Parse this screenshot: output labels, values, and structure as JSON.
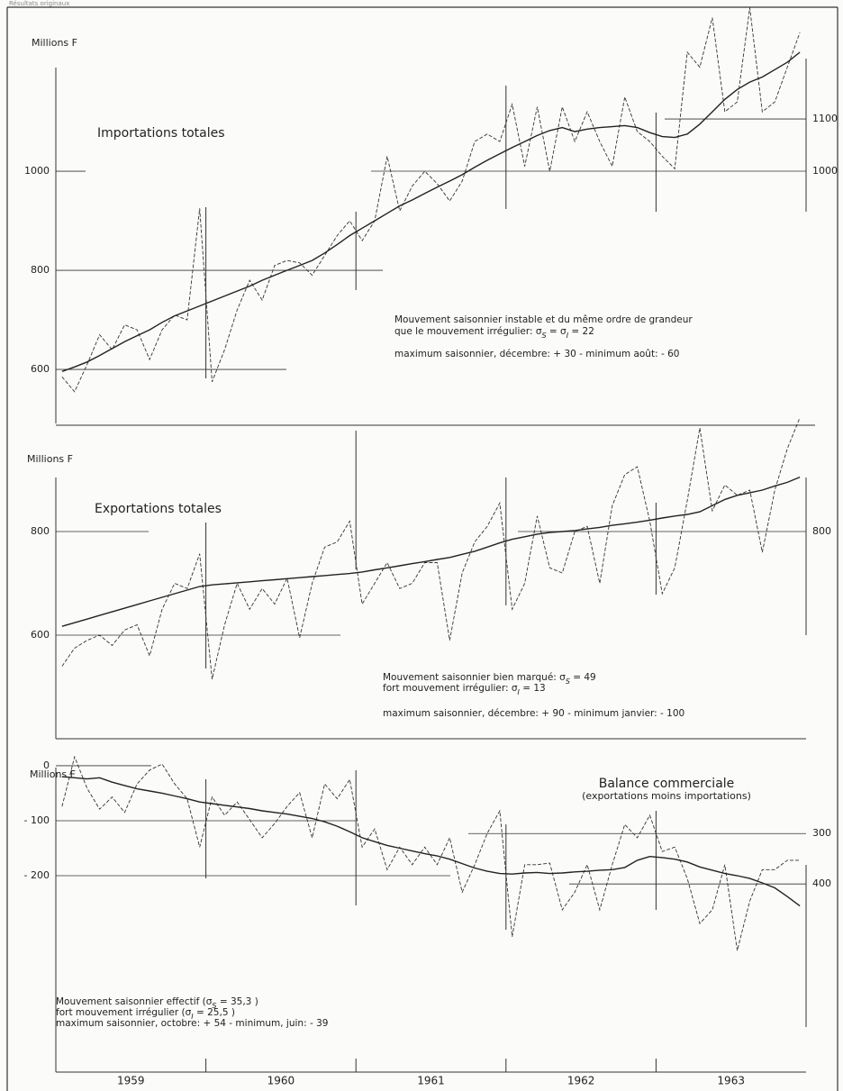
{
  "header": "Résultats originaux",
  "x_axis": {
    "years": [
      1959,
      1960,
      1961,
      1962,
      1963
    ]
  },
  "chart_data": [
    {
      "type": "line",
      "title": "Importations totales",
      "y_label": "Millions F",
      "notes": [
        "Mouvement saisonnier instable et du même ordre de grandeur",
        [
          "que le mouvement irrégulier: σ",
          "S",
          " = σ",
          "I",
          " = 22"
        ],
        "maximum saisonnier, décembre: + 30  -  minimum août:  - 60"
      ],
      "ylim": [
        491,
        1331
      ],
      "yticks": [
        600,
        800,
        1000
      ],
      "y2lim": [
        517,
        1314
      ],
      "y2ticks": [
        1000,
        1100
      ],
      "series": [
        {
          "style": "dashed",
          "color": "#333333",
          "values": [
            585,
            555,
            610,
            670,
            640,
            690,
            680,
            620,
            680,
            710,
            700,
            925,
            575,
            640,
            720,
            780,
            740,
            810,
            820,
            815,
            790,
            830,
            870,
            900,
            860,
            900,
            1030,
            920,
            970,
            1000,
            975,
            940,
            980,
            1060,
            1075,
            1060,
            1135,
            1010,
            1130,
            1000,
            1130,
            1060,
            1120,
            1060,
            1010,
            1150,
            1080,
            1060,
            1030,
            1005,
            1240,
            1210,
            1310,
            1120,
            1140,
            1330,
            1120,
            1140,
            1210,
            1280
          ]
        },
        {
          "style": "solid",
          "color": "#222222",
          "values": [
            596,
            605,
            615,
            628,
            642,
            656,
            668,
            680,
            695,
            708,
            718,
            728,
            738,
            748,
            758,
            768,
            780,
            790,
            800,
            810,
            820,
            835,
            852,
            870,
            885,
            900,
            915,
            930,
            942,
            955,
            968,
            980,
            993,
            1008,
            1022,
            1035,
            1048,
            1060,
            1072,
            1082,
            1088,
            1080,
            1085,
            1088,
            1090,
            1092,
            1088,
            1078,
            1070,
            1068,
            1075,
            1095,
            1120,
            1145,
            1165,
            1180,
            1190,
            1205,
            1220,
            1240
          ]
        }
      ]
    },
    {
      "type": "line",
      "title": "Exportations totales",
      "y_label": "Millions F",
      "notes": [
        [
          "Mouvement saisonnier bien marqué: σ",
          "S",
          "  =  49"
        ],
        [
          "fort mouvement irrégulier: σ",
          "I",
          " =  13"
        ],
        "maximum saisonnier, décembre: + 90  -  minimum janvier:  - 100"
      ],
      "ylim": [
        400,
        1020
      ],
      "yticks": [
        600,
        800
      ],
      "y2lim": [
        400,
        1020
      ],
      "y2ticks": [
        800
      ],
      "series": [
        {
          "style": "dashed",
          "color": "#333333",
          "values": [
            540,
            575,
            590,
            600,
            580,
            610,
            620,
            560,
            650,
            700,
            690,
            757,
            515,
            620,
            700,
            650,
            690,
            660,
            710,
            595,
            700,
            770,
            780,
            820,
            660,
            700,
            740,
            690,
            700,
            740,
            740,
            590,
            720,
            780,
            810,
            855,
            650,
            700,
            830,
            730,
            720,
            800,
            810,
            700,
            850,
            910,
            925,
            820,
            680,
            730,
            860,
            1000,
            840,
            890,
            870,
            880,
            760,
            880,
            960,
            1020
          ]
        },
        {
          "style": "solid",
          "color": "#222222",
          "values": [
            617,
            624,
            631,
            638,
            645,
            652,
            659,
            666,
            673,
            680,
            687,
            694,
            697,
            699,
            701,
            703,
            705,
            707,
            709,
            711,
            713,
            715,
            717,
            719,
            722,
            726,
            730,
            734,
            738,
            742,
            746,
            750,
            756,
            762,
            770,
            778,
            785,
            790,
            795,
            798,
            800,
            802,
            805,
            808,
            812,
            815,
            818,
            822,
            826,
            830,
            833,
            838,
            850,
            862,
            870,
            875,
            880,
            888,
            895,
            905
          ]
        }
      ]
    },
    {
      "type": "line",
      "title": "Balance commerciale",
      "subtitle": "(exportations moins importations)",
      "y_label": "Millions F",
      "notes": [
        [
          "Mouvement saisonnier effectif (σ",
          "S",
          " = 35,3 )"
        ],
        [
          "fort mouvement irrégulier (σ",
          "I",
          " = 25,5 )"
        ],
        "maximum saisonnier, octobre: + 54  -  minimum, juin: - 39"
      ],
      "ylim": [
        -557,
        49
      ],
      "yticks": [
        0,
        {
          "value": -100,
          "label": "- 100"
        },
        {
          "value": -200,
          "label": "- 200"
        }
      ],
      "y2lim": [
        773,
        112
      ],
      "y2ticks": [
        300,
        400
      ],
      "series": [
        {
          "style": "dashed",
          "color": "#333333",
          "values": [
            -74,
            16,
            -41,
            -79,
            -57,
            -85,
            -33,
            -8,
            3,
            -33,
            -60,
            -148,
            -57,
            -90,
            -66,
            -98,
            -131,
            -105,
            -74,
            -49,
            -131,
            -33,
            -60,
            -25,
            -148,
            -115,
            -189,
            -148,
            -180,
            -148,
            -180,
            -131,
            -230,
            -180,
            -123,
            -82,
            -311,
            -180,
            -180,
            -177,
            -262,
            -230,
            -180,
            -262,
            -180,
            -107,
            -131,
            -90,
            -156,
            -148,
            -205,
            -287,
            -262,
            -180,
            -336,
            -246,
            -189,
            -189,
            -172,
            -172
          ]
        },
        {
          "style": "solid",
          "color": "#222222",
          "values": [
            -20,
            -22,
            -24,
            -22,
            -30,
            -36,
            -42,
            -46,
            -50,
            -55,
            -60,
            -66,
            -69,
            -72,
            -75,
            -78,
            -82,
            -85,
            -88,
            -92,
            -96,
            -102,
            -110,
            -120,
            -131,
            -138,
            -145,
            -150,
            -155,
            -160,
            -164,
            -170,
            -178,
            -186,
            -192,
            -196,
            -197,
            -195,
            -194,
            -196,
            -195,
            -193,
            -192,
            -190,
            -189,
            -185,
            -172,
            -165,
            -167,
            -170,
            -175,
            -184,
            -190,
            -196,
            -200,
            -205,
            -213,
            -222,
            -238,
            -255
          ]
        }
      ]
    }
  ]
}
